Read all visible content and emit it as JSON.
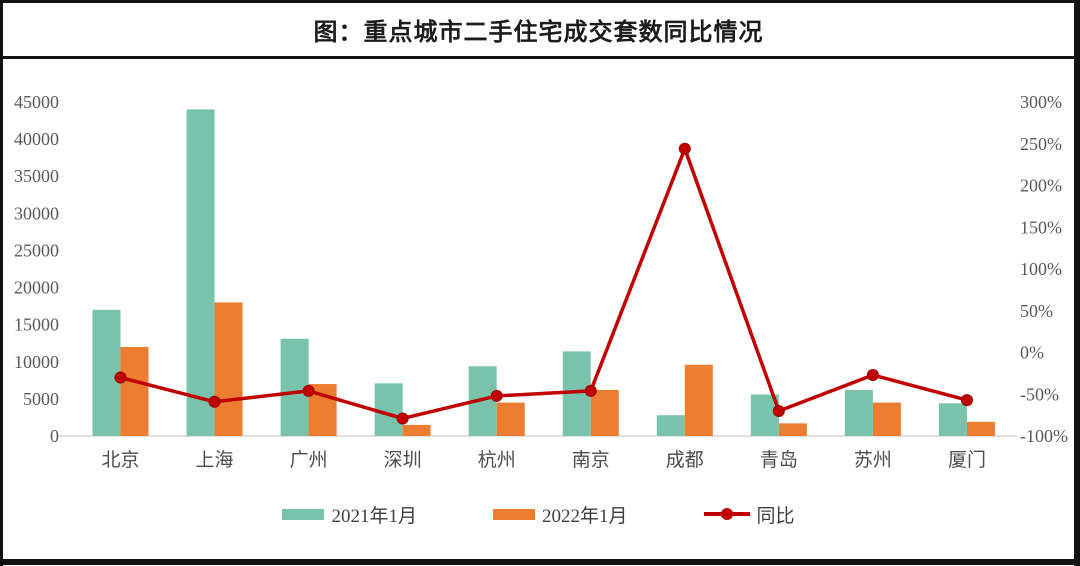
{
  "title": "图：重点城市二手住宅成交套数同比情况",
  "colors": {
    "bar_2021": "#79C2AB",
    "bar_2022": "#ED7D31",
    "yoy_line": "#C00000",
    "axis_text": "#595959",
    "axis_line": "#D6D6D6",
    "frame": "#121212"
  },
  "chart_data": {
    "type": "bar",
    "subtype": "grouped-bars-with-line-overlay",
    "title": "图：重点城市二手住宅成交套数同比情况",
    "categories": [
      "北京",
      "上海",
      "广州",
      "深圳",
      "杭州",
      "南京",
      "成都",
      "青岛",
      "苏州",
      "厦门"
    ],
    "series": [
      {
        "name": "2021年1月",
        "type": "bar",
        "axis": "left",
        "color": "#79C2AB",
        "values": [
          17000,
          44000,
          13100,
          7100,
          9400,
          11400,
          2800,
          5600,
          6200,
          4400
        ]
      },
      {
        "name": "2022年1月",
        "type": "bar",
        "axis": "left",
        "color": "#ED7D31",
        "values": [
          12000,
          18000,
          7000,
          1500,
          4500,
          6200,
          9600,
          1700,
          4500,
          1900
        ]
      },
      {
        "name": "同比",
        "type": "line",
        "axis": "right",
        "color": "#C00000",
        "values": [
          -30,
          -59,
          -46,
          -79,
          -52,
          -46,
          244,
          -70,
          -27,
          -57
        ]
      }
    ],
    "left_axis": {
      "min": 0,
      "max": 45000,
      "step": 5000,
      "ticks": [
        0,
        5000,
        10000,
        15000,
        20000,
        25000,
        30000,
        35000,
        40000,
        45000
      ]
    },
    "right_axis": {
      "min": -100,
      "max": 300,
      "step": 50,
      "unit": "%",
      "ticks": [
        300,
        250,
        200,
        150,
        100,
        50,
        0,
        -50,
        -100
      ]
    },
    "grid": "off",
    "legend_position": "bottom"
  }
}
